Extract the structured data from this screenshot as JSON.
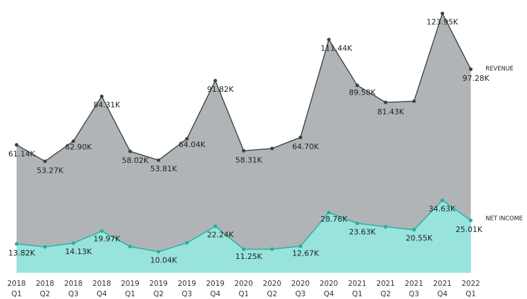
{
  "chart_data": {
    "type": "area",
    "categories": [
      [
        "2018",
        "Q1"
      ],
      [
        "2018",
        "Q2"
      ],
      [
        "2018",
        "Q3"
      ],
      [
        "2018",
        "Q4"
      ],
      [
        "2019",
        "Q1"
      ],
      [
        "2019",
        "Q2"
      ],
      [
        "2019",
        "Q3"
      ],
      [
        "2019",
        "Q4"
      ],
      [
        "2020",
        "Q1"
      ],
      [
        "2020",
        "Q2"
      ],
      [
        "2020",
        "Q3"
      ],
      [
        "2020",
        "Q4"
      ],
      [
        "2021",
        "Q1"
      ],
      [
        "2021",
        "Q2"
      ],
      [
        "2021",
        "Q3"
      ],
      [
        "2021",
        "Q4"
      ],
      [
        "2022",
        "Q1"
      ]
    ],
    "series": [
      {
        "name": "REVENUE",
        "color": "#b1b4b6",
        "line_color": "#3a4347",
        "values": [
          61.14,
          53.27,
          62.9,
          84.31,
          58.02,
          53.81,
          64.04,
          91.82,
          58.31,
          59.4,
          64.7,
          111.44,
          89.58,
          81.43,
          82.0,
          123.95,
          97.28
        ],
        "labels": [
          "61.14K",
          "53.27K",
          "62.90K",
          "84.31K",
          "58.02K",
          "53.81K",
          "64.04K",
          "91.82K",
          "58.31K",
          "",
          "64.70K",
          "111.44K",
          "89.58K",
          "81.43K",
          "",
          "123.95K",
          "97.28K"
        ]
      },
      {
        "name": "NET INCOME",
        "color": "#98e3dc",
        "line_color": "#1fb0a1",
        "values": [
          13.82,
          12.4,
          14.13,
          19.97,
          12.5,
          10.04,
          14.3,
          22.24,
          11.25,
          11.3,
          12.67,
          28.76,
          23.63,
          22.0,
          20.55,
          34.63,
          25.01
        ],
        "labels": [
          "13.82K",
          "",
          "14.13K",
          "19.97K",
          "",
          "10.04K",
          "",
          "22.24K",
          "11.25K",
          "",
          "12.67K",
          "28.76K",
          "23.63K",
          "",
          "20.55K",
          "34.63K",
          "25.01K"
        ]
      }
    ],
    "unit_suffix": "K",
    "ylim": [
      0,
      130
    ],
    "grid": false,
    "legend": "series labels at right end of lines"
  }
}
